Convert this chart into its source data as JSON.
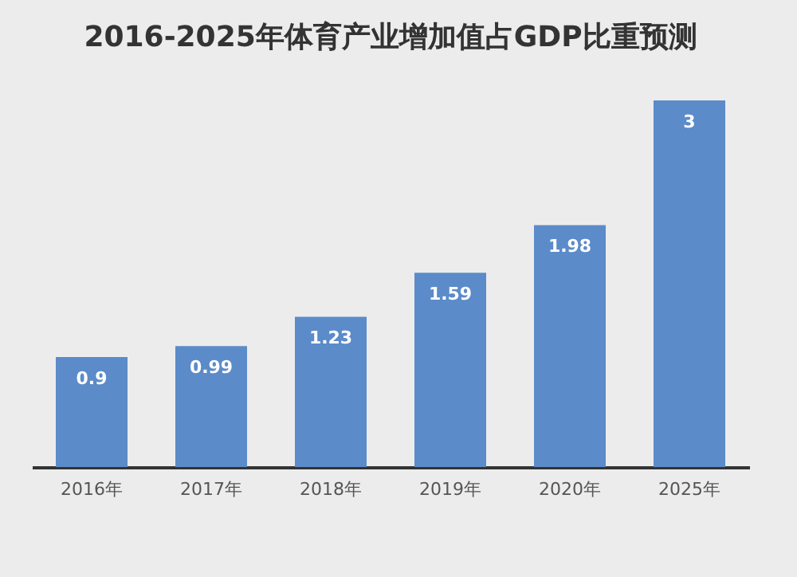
{
  "chart_data": {
    "type": "bar",
    "title": "2016-2025年体育产业增加值占GDP比重预测",
    "categories": [
      "2016年",
      "2017年",
      "2018年",
      "2019年",
      "2020年",
      "2025年"
    ],
    "values": [
      0.9,
      0.99,
      1.23,
      1.59,
      1.98,
      3
    ],
    "color": "#5b8bc9",
    "tick_labels": "x",
    "data_labels": true
  }
}
